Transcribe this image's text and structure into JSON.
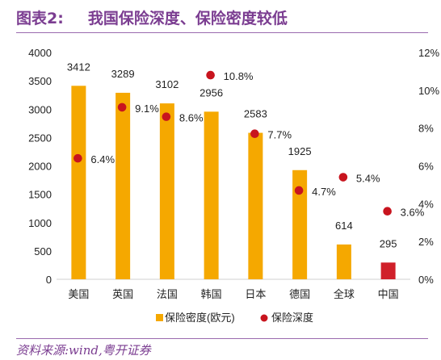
{
  "header": {
    "figure_label": "图表2:",
    "title": "我国保险深度、保险密度较低"
  },
  "footer": {
    "source": "资料来源:wind,粤开证券"
  },
  "colors": {
    "title": "#7b3d91",
    "bar": "#f5a800",
    "bar_highlight": "#d0202a",
    "dot": "#c8141e"
  },
  "chart_data": {
    "type": "bar",
    "categories": [
      "美国",
      "英国",
      "法国",
      "韩国",
      "日本",
      "德国",
      "全球",
      "中国"
    ],
    "series": [
      {
        "name": "保险密度(欧元)",
        "type": "bar",
        "axis": "left",
        "values": [
          3412,
          3289,
          3102,
          2956,
          2583,
          1925,
          614,
          295
        ],
        "labels": [
          "3412",
          "3289",
          "3102",
          "2956",
          "2583",
          "1925",
          "614",
          "295"
        ]
      },
      {
        "name": "保险深度",
        "type": "scatter",
        "axis": "right",
        "values": [
          6.4,
          9.1,
          8.6,
          10.8,
          7.7,
          4.7,
          5.4,
          3.6
        ],
        "labels": [
          "6.4%",
          "9.1%",
          "8.6%",
          "10.8%",
          "7.7%",
          "4.7%",
          "5.4%",
          "3.6%"
        ]
      }
    ],
    "highlight_category": "中国",
    "y_left": {
      "min": 0,
      "max": 4000,
      "ticks": [
        "0",
        "500",
        "1000",
        "1500",
        "2000",
        "2500",
        "3000",
        "3500",
        "4000"
      ]
    },
    "y_right": {
      "min": 0,
      "max": 12,
      "ticks": [
        "0%",
        "2%",
        "4%",
        "6%",
        "8%",
        "10%",
        "12%"
      ]
    },
    "legend": {
      "position": "bottom"
    },
    "grid": false
  }
}
